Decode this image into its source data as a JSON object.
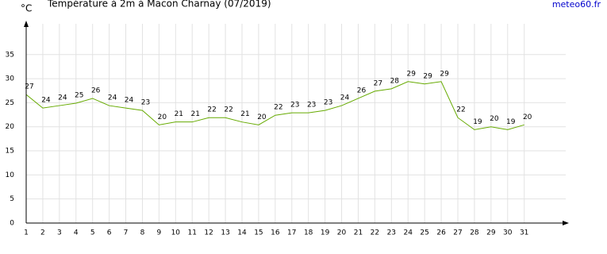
{
  "chart_data": {
    "type": "line",
    "title": "Température à 2m à Macon Charnay (07/2019)",
    "y_label": "°C",
    "source": "meteo60.fr",
    "x": [
      1,
      2,
      3,
      4,
      5,
      6,
      7,
      8,
      9,
      10,
      11,
      12,
      13,
      14,
      15,
      16,
      17,
      18,
      19,
      20,
      21,
      22,
      23,
      24,
      25,
      26,
      27,
      28,
      29,
      30,
      31
    ],
    "series": [
      {
        "name": "Température",
        "color": "#66aa00",
        "values": [
          26.7,
          23.9,
          24.4,
          24.9,
          25.9,
          24.4,
          23.9,
          23.4,
          20.4,
          21,
          21,
          21.9,
          21.9,
          21,
          20.4,
          22.4,
          22.9,
          22.9,
          23.4,
          24.4,
          25.9,
          27.4,
          27.9,
          29.4,
          28.9,
          29.4,
          21.9,
          19.4,
          20,
          19.4,
          20.4
        ],
        "value_labels": [
          "27",
          "24",
          "24",
          "25",
          "26",
          "24",
          "24",
          "23",
          "20",
          "21",
          "21",
          "22",
          "22",
          "21",
          "20",
          "22",
          "23",
          "23",
          "23",
          "24",
          "26",
          "27",
          "28",
          "29",
          "29",
          "29",
          "22",
          "19",
          "20",
          "19",
          "20"
        ]
      }
    ],
    "xlim": [
      1,
      33.5
    ],
    "xticks": [
      1,
      2,
      3,
      4,
      5,
      6,
      7,
      8,
      9,
      10,
      11,
      12,
      13,
      14,
      15,
      16,
      17,
      18,
      19,
      20,
      21,
      22,
      23,
      24,
      25,
      26,
      27,
      28,
      29,
      30,
      31
    ],
    "ylim": [
      0,
      41.4
    ],
    "yticks": [
      0,
      5,
      10,
      15,
      20,
      25,
      30,
      35
    ],
    "grid": true
  }
}
